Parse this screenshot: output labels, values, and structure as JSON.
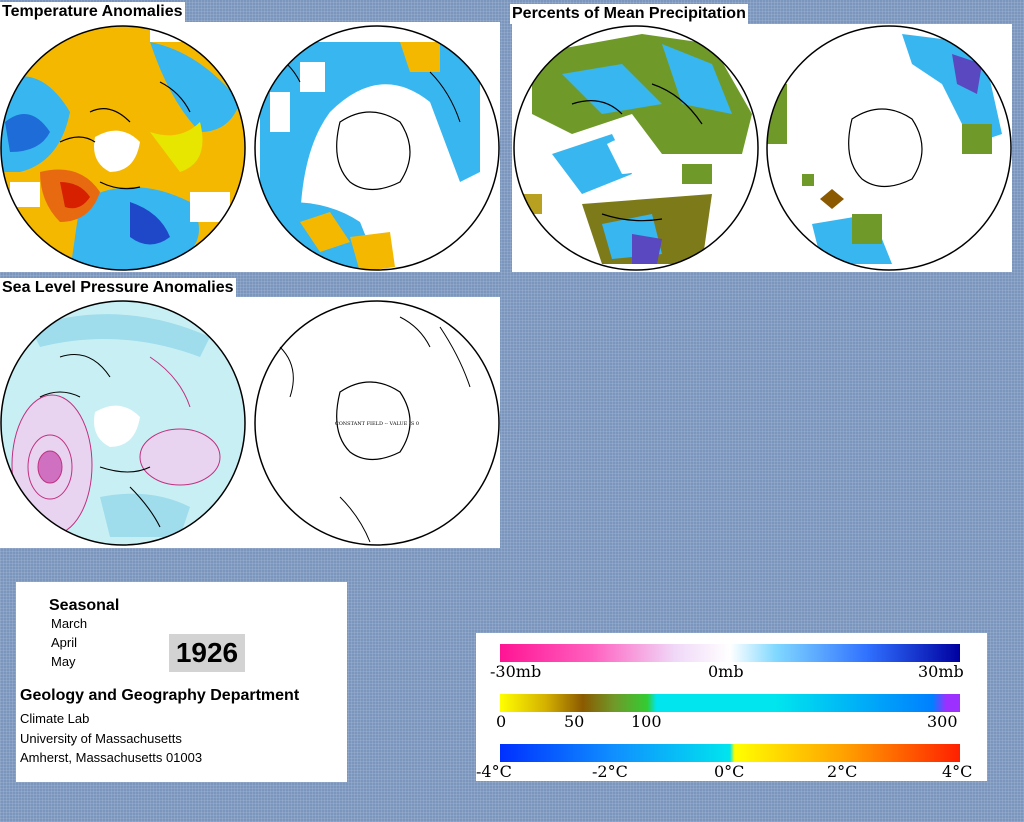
{
  "panels": {
    "temperature": {
      "title": "Temperature Anomalies"
    },
    "precipitation": {
      "title": "Percents of Mean Precipitation"
    },
    "pressure": {
      "title": "Sea Level Pressure Anomalies",
      "right_map_note": "CONSTANT FIELD -- VALUE IS 0"
    }
  },
  "info": {
    "heading": "Seasonal",
    "months": [
      "March",
      "April",
      "May"
    ],
    "year": "1926",
    "department": "Geology and Geography Department",
    "lab": "Climate Lab",
    "university": "University of Massachusetts",
    "address": "Amherst, Massachusetts 01003"
  },
  "legends": {
    "pressure": {
      "labels": [
        "-30mb",
        "0mb",
        "30mb"
      ],
      "colors": [
        "#ff1493",
        "#ffffff",
        "#0000a0"
      ]
    },
    "precipitation": {
      "labels": [
        "0",
        "50",
        "100",
        "300"
      ],
      "colors": [
        "#ffff00",
        "#8b5a00",
        "#33cc33",
        "#00e5ee",
        "#0040ff",
        "#9b30ff"
      ]
    },
    "temperature": {
      "labels": [
        "-4°C",
        "-2°C",
        "0°C",
        "2°C",
        "4°C"
      ],
      "colors": [
        "#0030ff",
        "#00bfff",
        "#00e5ee",
        "#ffff00",
        "#ff8000",
        "#ff0000"
      ]
    }
  },
  "colors": {
    "background": "#7b96bd",
    "warm": "#f5b800",
    "cool": "#38b6f0",
    "pressure_fill": "#c8f0f4"
  }
}
